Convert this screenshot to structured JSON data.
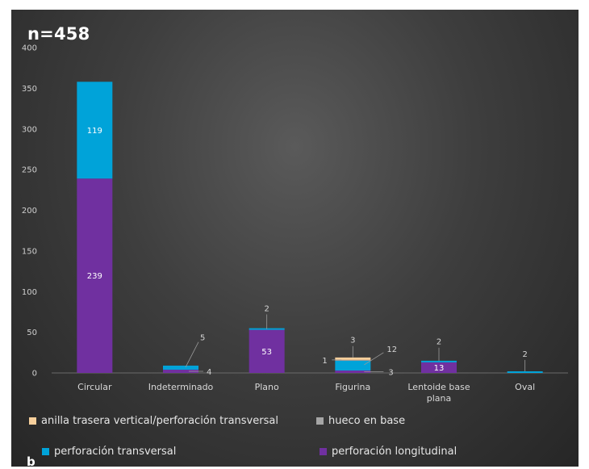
{
  "figure": {
    "title": "n=458",
    "panel_letter": "b"
  },
  "chart_data": {
    "type": "bar",
    "stacked": true,
    "title": "n=458",
    "xlabel": "",
    "ylabel": "",
    "ylim": [
      0,
      400
    ],
    "yticks": [
      0,
      50,
      100,
      150,
      200,
      250,
      300,
      350,
      400
    ],
    "grid": false,
    "legend_position": "bottom",
    "categories": [
      "Circular",
      "Indeterminado",
      "Plano",
      "Figurina",
      "Lentoide base plana",
      "Oval"
    ],
    "series": [
      {
        "name": "perforación longitudinal",
        "color": "#7030a0",
        "values": [
          239,
          4,
          53,
          3,
          13,
          0
        ],
        "labels": [
          "239",
          "4",
          "53",
          "3",
          "13",
          ""
        ]
      },
      {
        "name": "perforación transversal",
        "color": "#00a3d9",
        "values": [
          119,
          5,
          2,
          12,
          2,
          2
        ],
        "labels": [
          "119",
          "5",
          "2",
          "12",
          "2",
          "2"
        ]
      },
      {
        "name": "hueco en base",
        "color": "#a5a5a5",
        "values": [
          0,
          0,
          0,
          1,
          0,
          0
        ],
        "labels": [
          "",
          "",
          "",
          "1",
          "",
          ""
        ]
      },
      {
        "name": "anilla trasera vertical/perforación transversal",
        "color": "#f7cf9b",
        "values": [
          0,
          0,
          0,
          3,
          0,
          0
        ],
        "labels": [
          "",
          "",
          "",
          "3",
          "",
          ""
        ]
      }
    ]
  }
}
